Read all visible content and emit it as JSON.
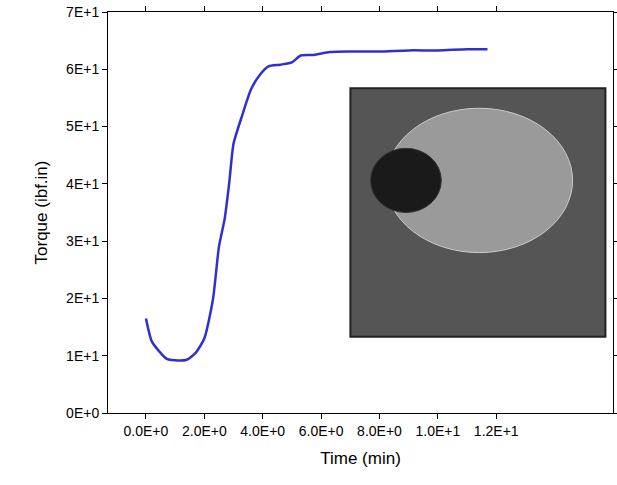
{
  "chart_data": {
    "type": "line",
    "x_label": "Time (min)",
    "y_label": "Torque (ibf.in)",
    "x": [
      0,
      0.2,
      0.5,
      0.7,
      1.0,
      1.4,
      1.7,
      2.0,
      2.3,
      2.5,
      2.7,
      2.85,
      3.0,
      3.3,
      3.6,
      3.9,
      4.2,
      4.6,
      5.0,
      5.3,
      5.7,
      6.3,
      7.0,
      8.0,
      9.0,
      10.0,
      11.0,
      11.7
    ],
    "values": [
      16.5,
      12.5,
      10.5,
      9.5,
      9.2,
      9.3,
      10.5,
      13,
      20,
      29,
      34,
      40,
      47,
      52,
      56.5,
      59,
      60.5,
      60.8,
      61.2,
      62.4,
      62.5,
      63,
      63.1,
      63.1,
      63.3,
      63.3,
      63.5,
      63.5
    ],
    "color": "#3030d0",
    "xlim": [
      -1.3,
      16
    ],
    "xticks": [
      {
        "value": 0,
        "label": "0.0E+0"
      },
      {
        "value": 2,
        "label": "2.0E+0"
      },
      {
        "value": 4,
        "label": "4.0E+0"
      },
      {
        "value": 6,
        "label": "6.0E+0"
      },
      {
        "value": 8,
        "label": "8.0E+0"
      },
      {
        "value": 10,
        "label": "1.0E+1"
      },
      {
        "value": 12,
        "label": "1.2E+1"
      }
    ],
    "ylim": [
      0,
      70
    ],
    "yticks": [
      {
        "value": 0,
        "label": "0E+0"
      },
      {
        "value": 10,
        "label": "1E+1"
      },
      {
        "value": 20,
        "label": "2E+1"
      },
      {
        "value": 30,
        "label": "3E+1"
      },
      {
        "value": 40,
        "label": "4E+1"
      },
      {
        "value": 50,
        "label": "5E+1"
      },
      {
        "value": 60,
        "label": "6E+1"
      },
      {
        "value": 70,
        "label": "7E+1"
      }
    ],
    "grid": false
  }
}
